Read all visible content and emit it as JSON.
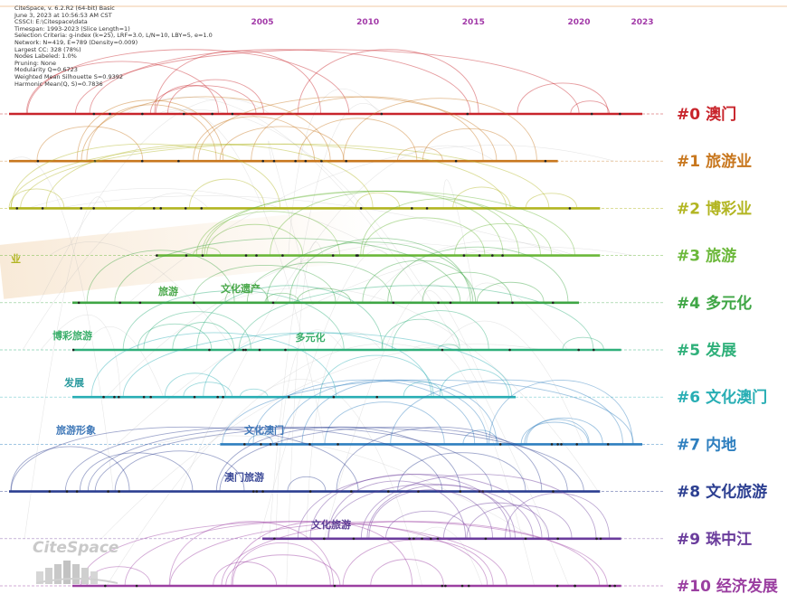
{
  "info_lines": [
    "CiteSpace, v. 6.2.R2 (64-bit) Basic",
    "June 3, 2023 at 10:56:53 AM CST",
    "CSSCI: E:\\Citespace\\data",
    "Timespan: 1993-2023 (Slice Length=1)",
    "Selection Criteria: g-index (k=25), LRF=3.0, L/N=10, LBY=5, e=1.0",
    "Network: N=419, E=789 (Density=0.009)",
    "Largest CC: 328 (78%)",
    "Nodes Labeled: 1.0%",
    "Pruning: None",
    "Modularity Q=0.6723",
    "Weighted Mean Silhouette S=0.9392",
    "Harmonic Mean(Q, S)=0.7836"
  ],
  "logo_text": "CiteSpace",
  "chart_data": {
    "type": "timeline",
    "years": [
      2005,
      2010,
      2015,
      2020,
      2023
    ],
    "x_range": [
      1993,
      2023
    ],
    "clusters": [
      {
        "id": "#0",
        "name": "澳门",
        "color": "#c8242b",
        "start": 1993,
        "end": 2023
      },
      {
        "id": "#1",
        "name": "旅游业",
        "color": "#c8771e",
        "start": 1993,
        "end": 2019
      },
      {
        "id": "#2",
        "name": "博彩业",
        "color": "#b2b521",
        "start": 1993,
        "end": 2021
      },
      {
        "id": "#3",
        "name": "旅游",
        "color": "#6bb83a",
        "start": 2000,
        "end": 2021
      },
      {
        "id": "#4",
        "name": "多元化",
        "color": "#3fa645",
        "start": 1996,
        "end": 2020
      },
      {
        "id": "#5",
        "name": "发展",
        "color": "#2fb07a",
        "start": 1996,
        "end": 2022
      },
      {
        "id": "#6",
        "name": "文化澳门",
        "color": "#28aeb4",
        "start": 1996,
        "end": 2017
      },
      {
        "id": "#7",
        "name": "内地",
        "color": "#2e7fbf",
        "start": 2003,
        "end": 2023
      },
      {
        "id": "#8",
        "name": "文化旅游",
        "color": "#2c3f91",
        "start": 1993,
        "end": 2021
      },
      {
        "id": "#9",
        "name": "珠中江",
        "color": "#6a3c9c",
        "start": 2005,
        "end": 2022
      },
      {
        "id": "#10",
        "name": "经济发展",
        "color": "#9b3fa1",
        "start": 1996,
        "end": 2022
      }
    ],
    "keyword_labels": [
      {
        "text": "旅游",
        "cluster": "#4",
        "color": "#4aa84a"
      },
      {
        "text": "文化遗产",
        "cluster": "#4",
        "color": "#4aa84a"
      },
      {
        "text": "博彩旅游",
        "cluster": "#5",
        "color": "#3aae6a"
      },
      {
        "text": "多元化",
        "cluster": "#5",
        "color": "#3aae6a"
      },
      {
        "text": "发展",
        "cluster": "#6",
        "color": "#2a9a9e"
      },
      {
        "text": "旅游形象",
        "cluster": "#7",
        "color": "#3f78b8"
      },
      {
        "text": "文化澳门",
        "cluster": "#7",
        "color": "#3f78b8"
      },
      {
        "text": "澳门旅游",
        "cluster": "#8",
        "color": "#3c4a98"
      },
      {
        "text": "文化旅游",
        "cluster": "#9",
        "color": "#5a3d94"
      }
    ],
    "fragment_label": {
      "text": "业",
      "color": "#b2b521"
    }
  }
}
